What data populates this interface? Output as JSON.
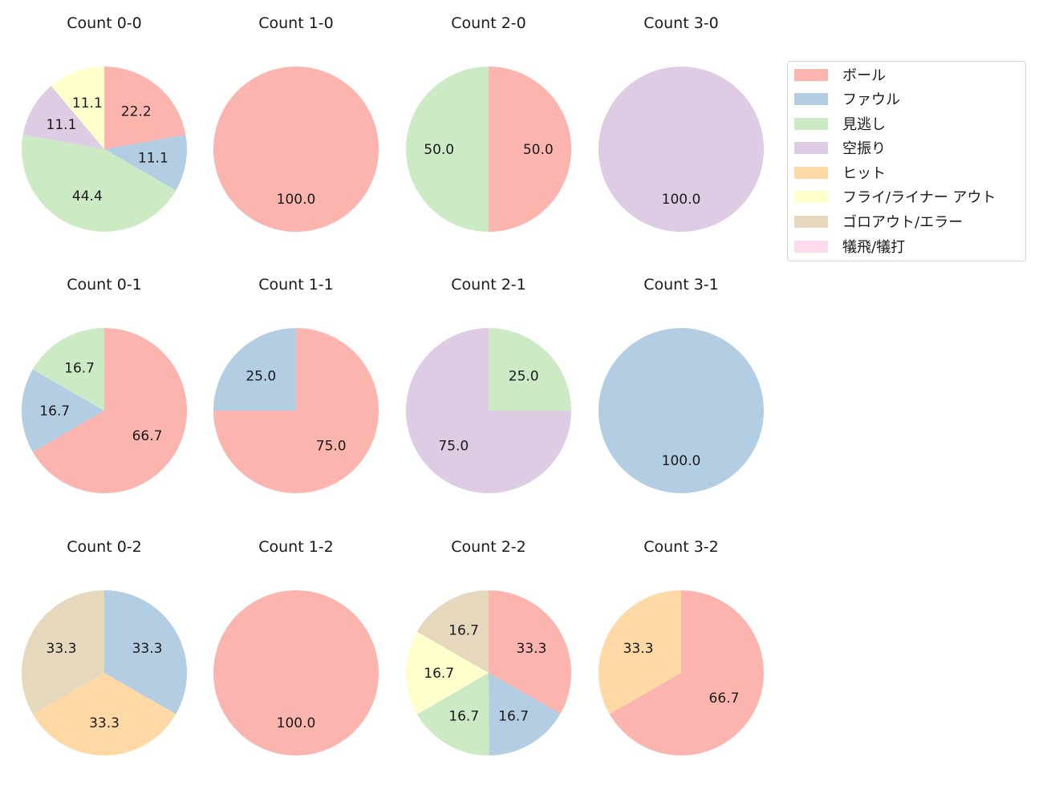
{
  "categories": [
    "ボール",
    "ファウル",
    "見逃し",
    "空振り",
    "ヒット",
    "フライ/ライナー アウト",
    "ゴロアウト/エラー",
    "犠飛/犠打"
  ],
  "colors": [
    "#fbb4ae",
    "#b3cde3",
    "#ccebc5",
    "#decbe4",
    "#fed9a6",
    "#ffffcc",
    "#e5d8bd",
    "#fddaec"
  ],
  "legend": {
    "items": [
      {
        "label": "ボール",
        "color": "#fbb4ae"
      },
      {
        "label": "ファウル",
        "color": "#b3cde3"
      },
      {
        "label": "見逃し",
        "color": "#ccebc5"
      },
      {
        "label": "空振り",
        "color": "#decbe4"
      },
      {
        "label": "ヒット",
        "color": "#fed9a6"
      },
      {
        "label": "フライ/ライナー アウト",
        "color": "#ffffcc"
      },
      {
        "label": "ゴロアウト/エラー",
        "color": "#e5d8bd"
      },
      {
        "label": "犠飛/犠打",
        "color": "#fddaec"
      }
    ]
  },
  "chart_data": [
    {
      "type": "pie",
      "title": "Count 0-0",
      "labels": [
        "ボール",
        "ファウル",
        "見逃し",
        "空振り",
        "フライ/ライナー アウト"
      ],
      "values": [
        22.2,
        11.1,
        44.4,
        11.1,
        11.1
      ]
    },
    {
      "type": "pie",
      "title": "Count 1-0",
      "labels": [
        "ボール"
      ],
      "values": [
        100.0
      ]
    },
    {
      "type": "pie",
      "title": "Count 2-0",
      "labels": [
        "ボール",
        "見逃し"
      ],
      "values": [
        50.0,
        50.0
      ]
    },
    {
      "type": "pie",
      "title": "Count 3-0",
      "labels": [
        "空振り"
      ],
      "values": [
        100.0
      ]
    },
    {
      "type": "pie",
      "title": "Count 0-1",
      "labels": [
        "ボール",
        "ファウル",
        "見逃し"
      ],
      "values": [
        66.7,
        16.7,
        16.7
      ]
    },
    {
      "type": "pie",
      "title": "Count 1-1",
      "labels": [
        "ボール",
        "ファウル"
      ],
      "values": [
        75.0,
        25.0
      ]
    },
    {
      "type": "pie",
      "title": "Count 2-1",
      "labels": [
        "見逃し",
        "空振り"
      ],
      "values": [
        25.0,
        75.0
      ]
    },
    {
      "type": "pie",
      "title": "Count 3-1",
      "labels": [
        "ファウル"
      ],
      "values": [
        100.0
      ]
    },
    {
      "type": "pie",
      "title": "Count 0-2",
      "labels": [
        "ファウル",
        "ヒット",
        "ゴロアウト/エラー"
      ],
      "values": [
        33.3,
        33.3,
        33.3
      ]
    },
    {
      "type": "pie",
      "title": "Count 1-2",
      "labels": [
        "ボール"
      ],
      "values": [
        100.0
      ]
    },
    {
      "type": "pie",
      "title": "Count 2-2",
      "labels": [
        "ボール",
        "ファウル",
        "見逃し",
        "フライ/ライナー アウト",
        "ゴロアウト/エラー"
      ],
      "values": [
        33.3,
        16.7,
        16.7,
        16.7,
        16.7
      ]
    },
    {
      "type": "pie",
      "title": "Count 3-2",
      "labels": [
        "ボール",
        "ヒット"
      ],
      "values": [
        66.7,
        33.3
      ]
    }
  ]
}
